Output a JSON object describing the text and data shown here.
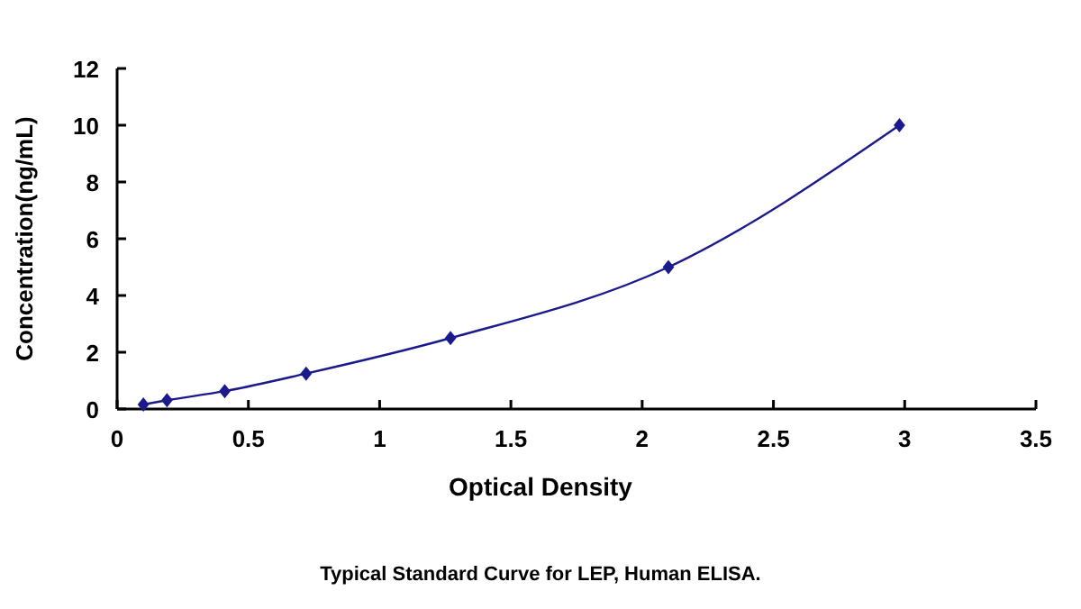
{
  "chart_data": {
    "type": "line",
    "xlabel": "Optical Density",
    "ylabel": "Concentration(ng/mL)",
    "x": [
      0.1,
      0.19,
      0.41,
      0.72,
      1.27,
      2.1,
      2.98
    ],
    "series": [
      {
        "color": "#1a1a8c",
        "values": [
          0.16,
          0.31,
          0.63,
          1.25,
          2.5,
          5,
          10
        ]
      }
    ],
    "xlim": [
      0,
      3.5
    ],
    "xticks": [
      0,
      0.5,
      1,
      1.5,
      2,
      2.5,
      3,
      3.5
    ],
    "ylim": [
      0,
      12
    ],
    "yticks": [
      0,
      2,
      4,
      6,
      8,
      10,
      12
    ],
    "marker": "diamond",
    "line_style": "solid",
    "annotations": [
      "Typical Standard Curve for LEP, Human ELISA."
    ]
  }
}
